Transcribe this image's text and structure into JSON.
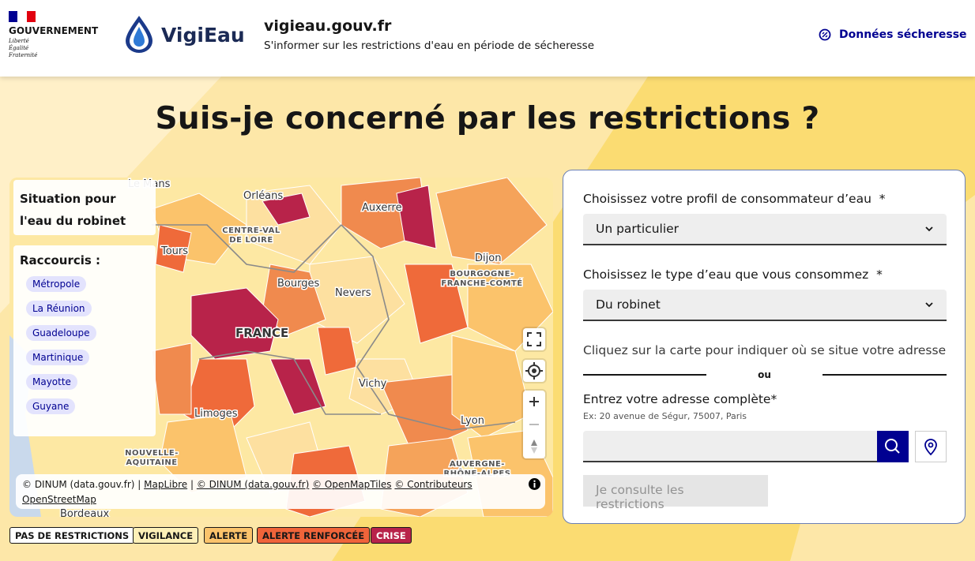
{
  "header": {
    "brand_top": "GOUVERNEMENT",
    "motto": [
      "Liberté",
      "Égalité",
      "Fraternité"
    ],
    "logo_text": "VigiEau",
    "site_name": "vigieau.gouv.fr",
    "tagline": "S'informer sur les restrictions d'eau en période de sécheresse",
    "nav_link": "Données sécheresse"
  },
  "title": "Suis-je concerné par les restrictions ?",
  "map": {
    "situation": "Situation pour l'eau du robinet",
    "shortcuts_title": "Raccourcis :",
    "shortcuts": [
      "Métropole",
      "La Réunion",
      "Guadeloupe",
      "Martinique",
      "Mayotte",
      "Guyane"
    ],
    "places": [
      "Orléans",
      "Auxerre",
      "Tours",
      "Dijon",
      "Bourges",
      "Nevers",
      "FRANCE",
      "Vichy",
      "Limoges",
      "Lyon",
      "Bordeaux",
      "Le Mans"
    ],
    "regions": [
      [
        "CENTRE-VAL",
        "DE LOIRE"
      ],
      [
        "BOURGOGNE-",
        "FRANCHE-COMTÉ"
      ],
      [
        "NOUVELLE-",
        "AQUITAINE"
      ],
      [
        "AUVERGNE-",
        "RHÔNE-ALPES"
      ]
    ],
    "attribution": {
      "dinum": "© DINUM (data.gouv.fr) |",
      "maplibre": "MapLibre",
      "sep": "|",
      "dinum_link": "© DINUM (data.gouv.fr)",
      "omt": "© OpenMapTiles",
      "osm": "© Contributeurs OpenStreetMap"
    }
  },
  "legend": [
    "PAS DE RESTRICTIONS",
    "VIGILANCE",
    "ALERTE",
    "ALERTE RENFORCÉE",
    "CRISE"
  ],
  "form": {
    "profile_label": "Choisissez votre profil de consommateur d’eau",
    "required_mark": "*",
    "profile_value": "Un particulier",
    "type_label": "Choisissez le type d’eau que vous consommez",
    "type_value": "Du robinet",
    "map_hint": "Cliquez sur la carte pour indiquer où se situe votre adresse",
    "separator": "ou",
    "address_label": "Entrez votre adresse complète",
    "address_hint": "Ex: 20 avenue de Ségur, 75007, Paris",
    "submit": "Je consulte les restrictions"
  }
}
